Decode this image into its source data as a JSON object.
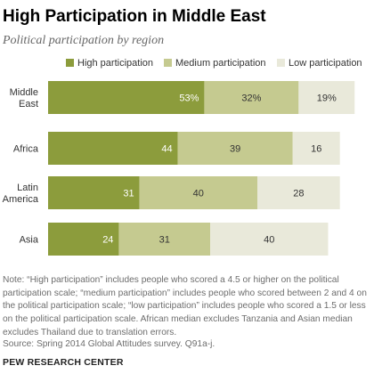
{
  "header": {
    "title": "High Participation in Middle East",
    "subtitle": "Political participation by region"
  },
  "footer": {
    "note": "Note: “High participation” includes people who scored a 4.5 or higher on the political participation scale; “medium participation” includes people who scored between 2 and 4 on the political participation scale; “low participation” includes people who scored a 1.5 or less on the political participation scale. African median excludes Tanzania and Asian median excludes Thailand due to translation errors.",
    "source": "Source: Spring 2014 Global Attitudes survey. Q91a-j.",
    "brand": "PEW RESEARCH CENTER"
  },
  "colors": {
    "high": "#8c9c3c",
    "medium": "#c5ca90",
    "low": "#e9e9da",
    "value_label_dark_bg": "#ffffff",
    "value_label_light_bg": "#333333"
  },
  "chart_data": {
    "type": "bar",
    "orientation": "horizontal",
    "stacked": true,
    "categories": [
      [
        "Middle",
        "East"
      ],
      [
        "Africa"
      ],
      [
        "Latin",
        "America"
      ],
      [
        "Asia"
      ]
    ],
    "series": [
      {
        "name": "High participation",
        "values": [
          53,
          44,
          31,
          24
        ],
        "labels": [
          "53%",
          "44",
          "31",
          "24"
        ]
      },
      {
        "name": "Medium participation",
        "values": [
          32,
          39,
          40,
          31
        ],
        "labels": [
          "32%",
          "39",
          "40",
          "31"
        ]
      },
      {
        "name": "Low participation",
        "values": [
          19,
          16,
          28,
          40
        ],
        "labels": [
          "19%",
          "16",
          "28",
          "40"
        ]
      }
    ],
    "legend_position": "top",
    "grid": false
  }
}
